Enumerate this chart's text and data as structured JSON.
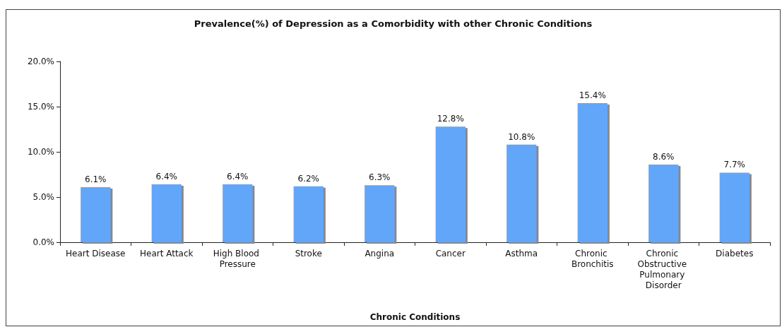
{
  "chart_data": {
    "type": "bar",
    "title": "Prevalence(%) of Depression as a Comorbidity with other Chronic Conditions",
    "xlabel": "Chronic Conditions",
    "categories": [
      "Heart Disease",
      "Heart Attack",
      "High Blood Pressure",
      "Stroke",
      "Angina",
      "Cancer",
      "Asthma",
      "Chronic Bronchitis",
      "Chronic Obstructive Pulmonary Disorder",
      "Diabetes"
    ],
    "values": [
      6.1,
      6.4,
      6.4,
      6.2,
      6.3,
      12.8,
      10.8,
      15.4,
      8.6,
      7.7
    ],
    "value_labels": [
      "6.1%",
      "6.4%",
      "6.4%",
      "6.2%",
      "6.3%",
      "12.8%",
      "10.8%",
      "15.4%",
      "8.6%",
      "7.7%"
    ],
    "color": "#62a6fa",
    "ylim": [
      0,
      20
    ],
    "yticks": [
      {
        "value": 0,
        "label": "0.0%"
      },
      {
        "value": 5,
        "label": "5.0%"
      },
      {
        "value": 10,
        "label": "10.0%"
      },
      {
        "value": 15,
        "label": "15.0%"
      },
      {
        "value": 20,
        "label": "20.0%"
      }
    ],
    "grid": false
  }
}
